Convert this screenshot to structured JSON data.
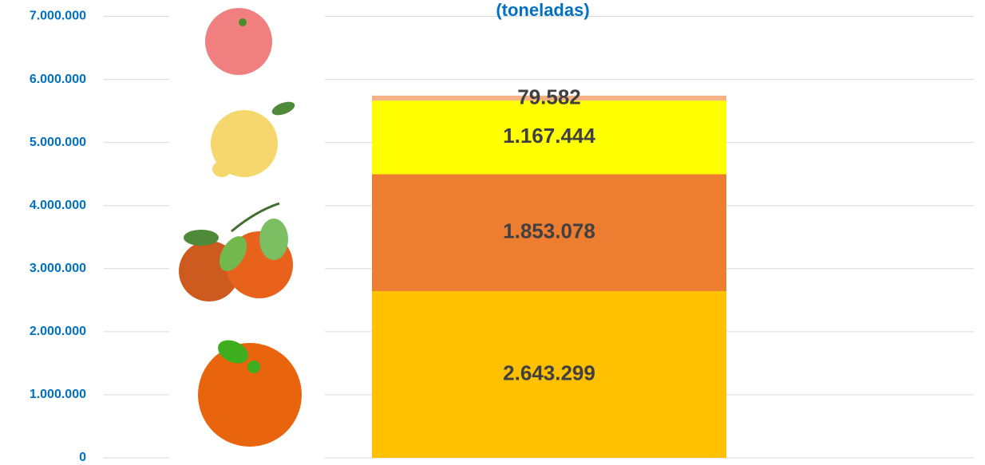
{
  "chart_data": {
    "type": "stacked_bar",
    "title": "(toneladas)",
    "series": [
      {
        "color": "#ffc000",
        "values": [
          2643299
        ],
        "value_labels": [
          "2.643.299"
        ]
      },
      {
        "color": "#ed7d31",
        "values": [
          1853078
        ],
        "value_labels": [
          "1.853.078"
        ]
      },
      {
        "color": "#ffff00",
        "values": [
          1167444
        ],
        "value_labels": [
          "1.167.444"
        ]
      },
      {
        "color": "#f4b183",
        "values": [
          79582
        ],
        "value_labels": [
          "79.582"
        ]
      }
    ],
    "ylim": [
      0,
      7000000
    ],
    "yticks": [
      0,
      {
        "value": 1000000,
        "label": "1.000.000"
      },
      {
        "value": 2000000,
        "label": "2.000.000"
      },
      {
        "value": 3000000,
        "label": "3.000.000"
      },
      {
        "value": 4000000,
        "label": "4.000.000"
      },
      {
        "value": 5000000,
        "label": "5.000.000"
      },
      {
        "value": 6000000,
        "label": "6.000.000"
      },
      {
        "value": 7000000,
        "label": "7.000.000"
      }
    ],
    "grid": true
  }
}
